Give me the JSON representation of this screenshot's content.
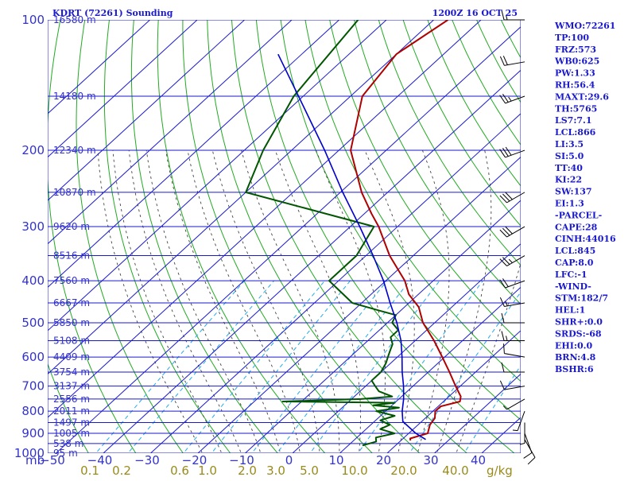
{
  "header": {
    "left_title": "KDRT (72261) Sounding",
    "right_title": "1200Z 16 OCT 25"
  },
  "colors": {
    "isobar": "#1a1acc",
    "isotherm": "#1a1acc",
    "dry_adiabat": "#22aa22",
    "moist_adiabat": "#444444",
    "mixing_ratio": "#22aaee",
    "temperature": "#b00000",
    "dewpoint": "#005500",
    "parcel": "#0000cc",
    "wind_barb": "#000000"
  },
  "indices": [
    "WMO:72261",
    "TP:100",
    "FRZ:573",
    "WB0:625",
    "PW:1.33",
    "RH:56.4",
    "MAXT:29.6",
    "TH:5765",
    "LS7:7.1",
    "LCL:866",
    "LI:3.5",
    "SI:5.0",
    "TT:40",
    "KI:22",
    "SW:137",
    "EI:1.3",
    "-PARCEL-",
    "CAPE:28",
    "CINH:44016",
    "LCL:845",
    "CAP:8.0",
    "LFC:-1",
    "-WIND-",
    "STM:182/7",
    "HEL:1",
    "SHR+:0.0",
    "SRDS:-68",
    "EHI:0.0",
    "BRN:4.8",
    "BSHR:6"
  ],
  "x_axis": {
    "unit_label": "mb",
    "ticks": [
      "−50",
      "−40",
      "−30",
      "−20",
      "−10",
      "0",
      "10",
      "20",
      "30",
      "40"
    ]
  },
  "mixing_ratio_axis": {
    "unit_label": "g/kg",
    "ticks": [
      "0.1",
      "0.2",
      "0.6",
      "1.0",
      "2.0",
      "3.0",
      "5.0",
      "10.0",
      "20.0",
      "40.0"
    ]
  },
  "chart_data": {
    "type": "line",
    "title": "KDRT (72261) Sounding",
    "subtitle": "1200Z 16 OCT 25",
    "xlabel": "",
    "ylabel": "mb",
    "ylim": [
      1000,
      100
    ],
    "xlim": [
      -50,
      50
    ],
    "y_scale": "log",
    "skew_t": true,
    "pressure_ticks": [
      100,
      200,
      300,
      400,
      500,
      600,
      700,
      800,
      900,
      1000
    ],
    "temperature_ticks": [
      -50,
      -40,
      -30,
      -20,
      -10,
      0,
      10,
      20,
      30,
      40
    ],
    "mixing_ratio_ticks": [
      0.1,
      0.2,
      0.6,
      1.0,
      2.0,
      3.0,
      5.0,
      10.0,
      20.0,
      40.0
    ],
    "heights": [
      {
        "p": 100,
        "label": "16580 m"
      },
      {
        "p": 150,
        "label": "14180 m"
      },
      {
        "p": 200,
        "label": "12340 m"
      },
      {
        "p": 250,
        "label": "10870 m"
      },
      {
        "p": 300,
        "label": "9620 m"
      },
      {
        "p": 350,
        "label": "8516 m"
      },
      {
        "p": 400,
        "label": "7560 m"
      },
      {
        "p": 450,
        "label": "6667 m"
      },
      {
        "p": 500,
        "label": "5850 m"
      },
      {
        "p": 550,
        "label": "5108 m"
      },
      {
        "p": 600,
        "label": "4409 m"
      },
      {
        "p": 650,
        "label": "3754 m"
      },
      {
        "p": 700,
        "label": "3137 m"
      },
      {
        "p": 750,
        "label": "2556 m"
      },
      {
        "p": 800,
        "label": "2011 m"
      },
      {
        "p": 850,
        "label": "1497 m"
      },
      {
        "p": 900,
        "label": "1005 m"
      },
      {
        "p": 950,
        "label": "538 m"
      },
      {
        "p": 1000,
        "label": "95 m"
      }
    ],
    "series": [
      {
        "kind": "temperature",
        "points": [
          {
            "p": 935,
            "t": 22.0
          },
          {
            "p": 925,
            "t": 21.5
          },
          {
            "p": 900,
            "t": 24.0
          },
          {
            "p": 860,
            "t": 22.5
          },
          {
            "p": 830,
            "t": 22.0
          },
          {
            "p": 800,
            "t": 20.5
          },
          {
            "p": 780,
            "t": 20.5
          },
          {
            "p": 760,
            "t": 23.5
          },
          {
            "p": 740,
            "t": 22.5
          },
          {
            "p": 700,
            "t": 19.0
          },
          {
            "p": 650,
            "t": 14.5
          },
          {
            "p": 600,
            "t": 9.5
          },
          {
            "p": 550,
            "t": 4.0
          },
          {
            "p": 500,
            "t": -2.5
          },
          {
            "p": 460,
            "t": -7.0
          },
          {
            "p": 430,
            "t": -12.0
          },
          {
            "p": 400,
            "t": -16.0
          },
          {
            "p": 350,
            "t": -25.0
          },
          {
            "p": 300,
            "t": -34.0
          },
          {
            "p": 280,
            "t": -38.5
          },
          {
            "p": 250,
            "t": -45.5
          },
          {
            "p": 200,
            "t": -57.5
          },
          {
            "p": 150,
            "t": -67.5
          },
          {
            "p": 120,
            "t": -70.0
          },
          {
            "p": 100,
            "t": -67.0
          }
        ]
      },
      {
        "kind": "dewpoint",
        "points": [
          {
            "p": 960,
            "t": 13.0
          },
          {
            "p": 940,
            "t": 15.0
          },
          {
            "p": 920,
            "t": 14.0
          },
          {
            "p": 900,
            "t": 17.0
          },
          {
            "p": 880,
            "t": 13.0
          },
          {
            "p": 860,
            "t": 14.0
          },
          {
            "p": 840,
            "t": 11.0
          },
          {
            "p": 820,
            "t": 13.0
          },
          {
            "p": 800,
            "t": 8.0
          },
          {
            "p": 785,
            "t": 12.0
          },
          {
            "p": 775,
            "t": 6.0
          },
          {
            "p": 765,
            "t": 10.0
          },
          {
            "p": 760,
            "t": -14.0
          },
          {
            "p": 750,
            "t": 2.0
          },
          {
            "p": 740,
            "t": 8.0
          },
          {
            "p": 720,
            "t": 4.0
          },
          {
            "p": 700,
            "t": 2.0
          },
          {
            "p": 680,
            "t": 0.0
          },
          {
            "p": 650,
            "t": 0.0
          },
          {
            "p": 620,
            "t": -1.0
          },
          {
            "p": 600,
            "t": -2.0
          },
          {
            "p": 580,
            "t": -3.0
          },
          {
            "p": 560,
            "t": -4.0
          },
          {
            "p": 540,
            "t": -6.0
          },
          {
            "p": 520,
            "t": -6.0
          },
          {
            "p": 500,
            "t": -9.0
          },
          {
            "p": 480,
            "t": -10.0
          },
          {
            "p": 470,
            "t": -14.0
          },
          {
            "p": 450,
            "t": -22.0
          },
          {
            "p": 400,
            "t": -32.0
          },
          {
            "p": 350,
            "t": -32.0
          },
          {
            "p": 300,
            "t": -35.0
          },
          {
            "p": 250,
            "t": -70.0
          },
          {
            "p": 200,
            "t": -76.0
          },
          {
            "p": 150,
            "t": -82.0
          },
          {
            "p": 100,
            "t": -86.0
          }
        ]
      },
      {
        "kind": "parcel",
        "points": [
          {
            "p": 930,
            "t": 25.0
          },
          {
            "p": 900,
            "t": 21.5
          },
          {
            "p": 845,
            "t": 16.0
          },
          {
            "p": 800,
            "t": 13.5
          },
          {
            "p": 750,
            "t": 11.0
          },
          {
            "p": 700,
            "t": 8.0
          },
          {
            "p": 650,
            "t": 4.5
          },
          {
            "p": 600,
            "t": 1.0
          },
          {
            "p": 550,
            "t": -3.0
          },
          {
            "p": 500,
            "t": -8.0
          },
          {
            "p": 450,
            "t": -14.0
          },
          {
            "p": 400,
            "t": -20.5
          },
          {
            "p": 350,
            "t": -28.5
          },
          {
            "p": 300,
            "t": -38.0
          },
          {
            "p": 250,
            "t": -49.5
          },
          {
            "p": 200,
            "t": -63.0
          },
          {
            "p": 150,
            "t": -81.0
          },
          {
            "p": 120,
            "t": -95.0
          }
        ]
      }
    ],
    "wind_barbs": [
      {
        "p": 930,
        "dir": 150,
        "spd": 10
      },
      {
        "p": 900,
        "dir": 160,
        "spd": 10
      },
      {
        "p": 850,
        "dir": 180,
        "spd": 5
      },
      {
        "p": 800,
        "dir": 200,
        "spd": 5
      },
      {
        "p": 750,
        "dir": 240,
        "spd": 5
      },
      {
        "p": 700,
        "dir": 260,
        "spd": 10
      },
      {
        "p": 650,
        "dir": 270,
        "spd": 10
      },
      {
        "p": 600,
        "dir": 280,
        "spd": 10
      },
      {
        "p": 550,
        "dir": 270,
        "spd": 15
      },
      {
        "p": 500,
        "dir": 270,
        "spd": 10
      },
      {
        "p": 450,
        "dir": 260,
        "spd": 15
      },
      {
        "p": 400,
        "dir": 250,
        "spd": 20
      },
      {
        "p": 350,
        "dir": 240,
        "spd": 25
      },
      {
        "p": 300,
        "dir": 240,
        "spd": 30
      },
      {
        "p": 250,
        "dir": 240,
        "spd": 30
      },
      {
        "p": 200,
        "dir": 250,
        "spd": 30
      },
      {
        "p": 150,
        "dir": 250,
        "spd": 25
      },
      {
        "p": 125,
        "dir": 260,
        "spd": 20
      },
      {
        "p": 100,
        "dir": 270,
        "spd": 15
      }
    ]
  }
}
